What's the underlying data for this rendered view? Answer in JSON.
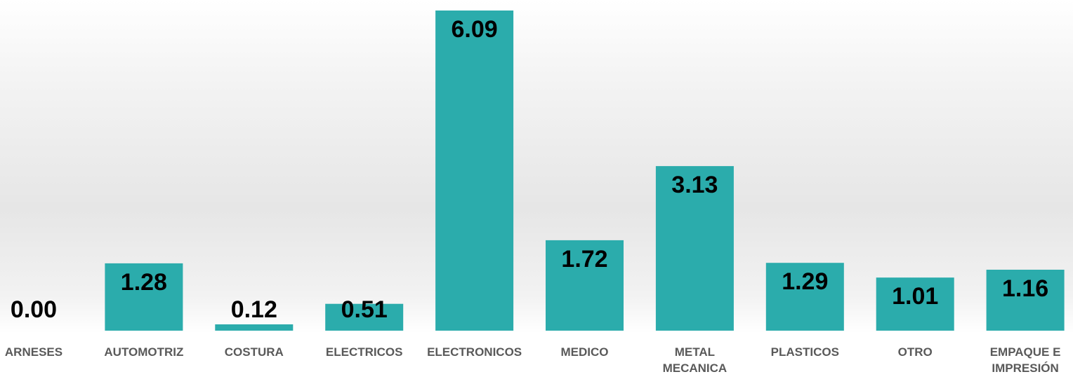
{
  "chart_data": {
    "type": "bar",
    "categories": [
      "ARNESES",
      "AUTOMOTRIZ",
      "COSTURA",
      "ELECTRICOS",
      "ELECTRONICOS",
      "MEDICO",
      "METAL MECANICA",
      "PLASTICOS",
      "OTRO",
      "EMPAQUE E IMPRESIÓN"
    ],
    "category_lines": [
      [
        "ARNESES"
      ],
      [
        "AUTOMOTRIZ"
      ],
      [
        "COSTURA"
      ],
      [
        "ELECTRICOS"
      ],
      [
        "ELECTRONICOS"
      ],
      [
        "MEDICO"
      ],
      [
        "METAL",
        "MECANICA"
      ],
      [
        "PLASTICOS"
      ],
      [
        "OTRO"
      ],
      [
        "EMPAQUE E",
        "IMPRESIÓN"
      ]
    ],
    "values": [
      0.0,
      1.28,
      0.12,
      0.51,
      6.09,
      1.72,
      3.13,
      1.29,
      1.01,
      1.16
    ],
    "value_labels": [
      "0.00",
      "1.28",
      "0.12",
      "0.51",
      "6.09",
      "1.72",
      "3.13",
      "1.29",
      "1.01",
      "1.16"
    ],
    "title": "",
    "xlabel": "",
    "ylabel": "",
    "ylim": [
      0,
      6.09
    ],
    "grid": false,
    "legend": "none",
    "bar_color": "#2BACAC",
    "label_color": "#595959"
  }
}
